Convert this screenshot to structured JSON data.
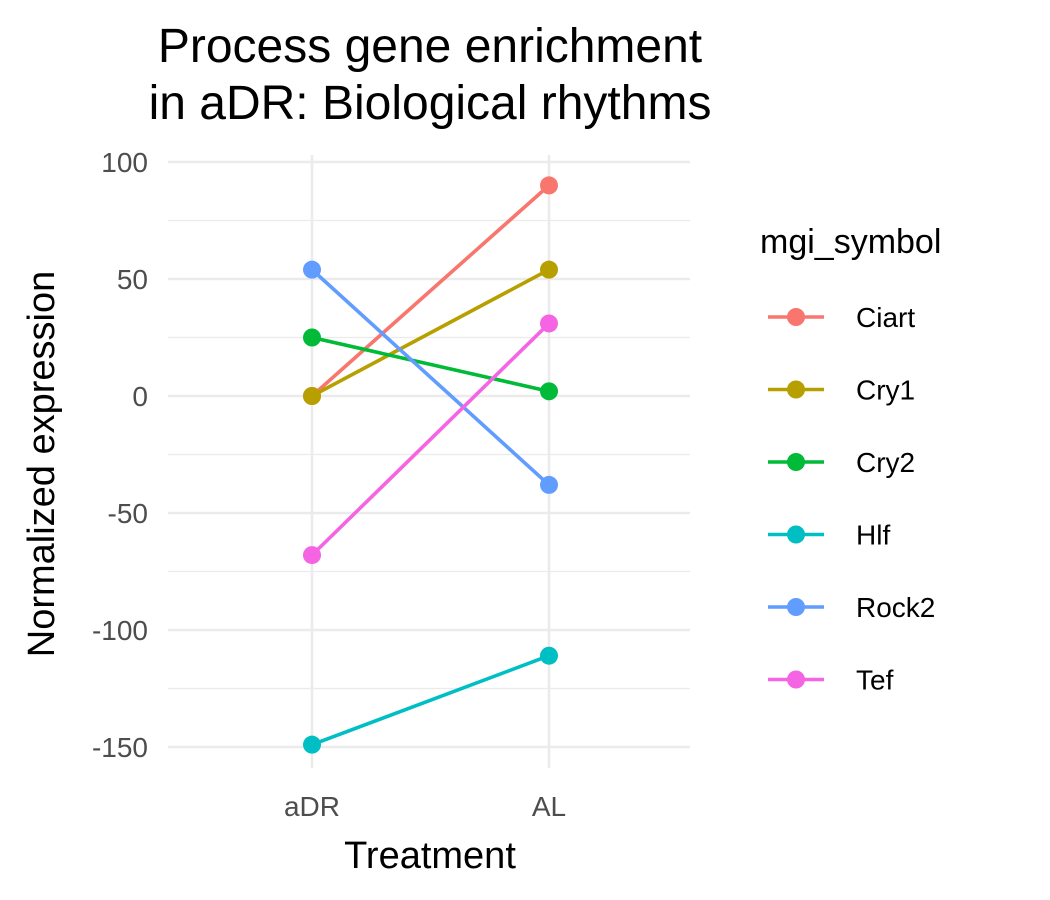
{
  "chart_data": {
    "type": "line",
    "title": "Process gene enrichment\nin aDR: Biological rhythms",
    "title_lines": [
      "Process gene enrichment",
      "in aDR: Biological rhythms"
    ],
    "xlabel": "Treatment",
    "ylabel": "Normalized expression",
    "categories": [
      "aDR",
      "AL"
    ],
    "ylim": [
      -160,
      103
    ],
    "yticks": [
      100,
      50,
      0,
      -50,
      -100,
      -150
    ],
    "ytick_labels": [
      "100",
      "50",
      "0",
      "-50",
      "-100",
      "-150"
    ],
    "yminor": [
      75,
      25,
      -25,
      -75,
      -125
    ],
    "grid": true,
    "legend_title": "mgi_symbol",
    "legend_position": "right",
    "series": [
      {
        "name": "Ciart",
        "color": "#F8766D",
        "values": [
          0,
          90
        ]
      },
      {
        "name": "Cry1",
        "color": "#B79F00",
        "values": [
          0,
          54
        ]
      },
      {
        "name": "Cry2",
        "color": "#00BA38",
        "values": [
          25,
          2
        ]
      },
      {
        "name": "Hlf",
        "color": "#00BFC4",
        "values": [
          -149,
          -111
        ]
      },
      {
        "name": "Rock2",
        "color": "#619CFF",
        "values": [
          54,
          -38
        ]
      },
      {
        "name": "Tef",
        "color": "#F564E3",
        "values": [
          -68,
          31
        ]
      }
    ]
  }
}
